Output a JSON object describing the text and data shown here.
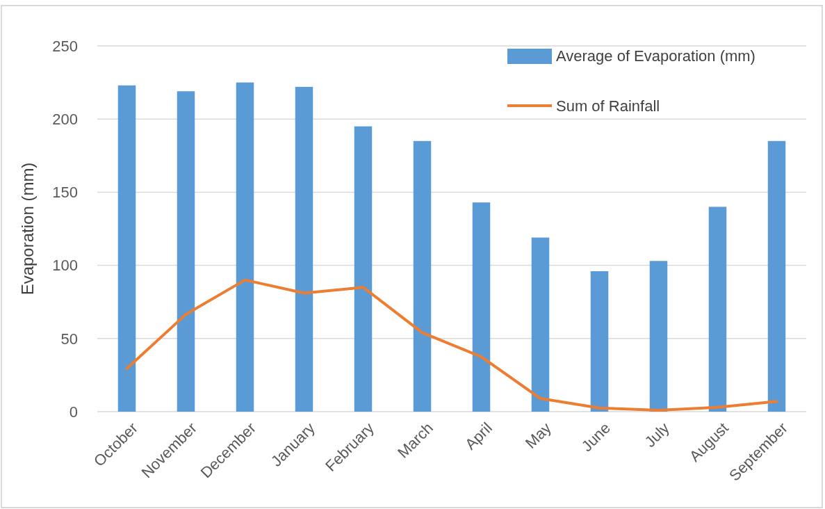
{
  "chart_data": {
    "type": "bar",
    "ylabel": "Evaporation (mm)",
    "categories": [
      "October",
      "November",
      "December",
      "January",
      "February",
      "March",
      "April",
      "May",
      "June",
      "July",
      "August",
      "September"
    ],
    "series": [
      {
        "name": "Average of Evaporation (mm)",
        "color": "#5b9bd5",
        "values": [
          223,
          219,
          225,
          222,
          195,
          185,
          143,
          119,
          96,
          103,
          140,
          185
        ]
      },
      {
        "name": "Sum of Rainfall",
        "type": "line",
        "color": "#ed7d31",
        "values": [
          29.5,
          66.5,
          90,
          81,
          85,
          54,
          37.5,
          9,
          2.5,
          1,
          3,
          7
        ]
      }
    ],
    "ylim": [
      0,
      250
    ],
    "yticks": [
      0,
      50,
      100,
      150,
      200,
      250
    ],
    "grid": "y",
    "legend": "top right",
    "marker": "none",
    "line_style": "solid"
  }
}
